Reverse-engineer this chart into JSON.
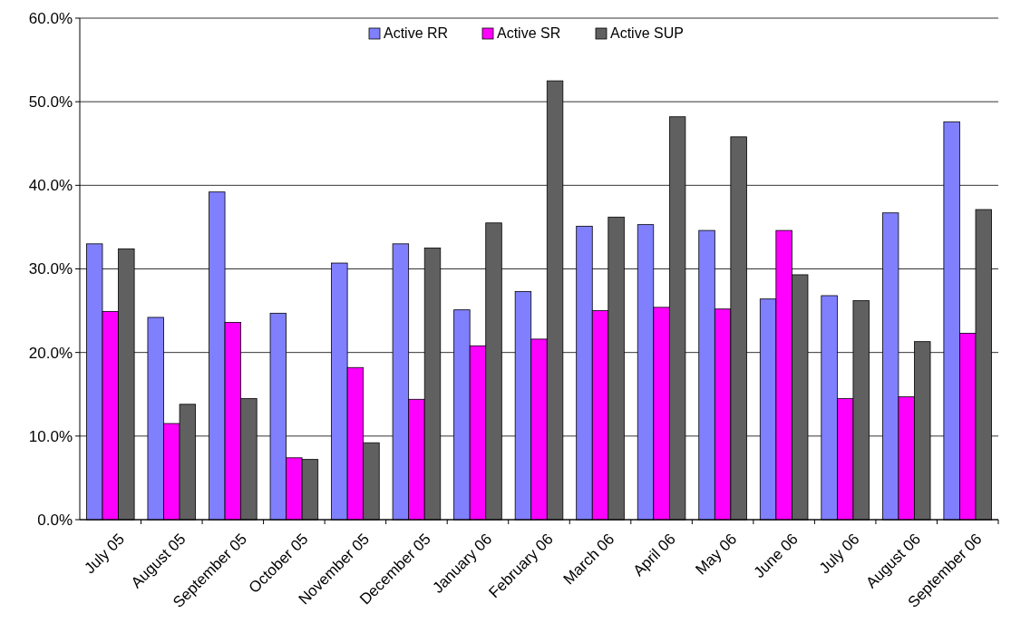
{
  "chart_data": {
    "type": "bar",
    "categories": [
      "July 05",
      "August 05",
      "September 05",
      "October 05",
      "November 05",
      "December 05",
      "January 06",
      "February 06",
      "March 06",
      "April 06",
      "May 06",
      "June 06",
      "July 06",
      "August 06",
      "September 06"
    ],
    "series": [
      {
        "name": "Active RR",
        "color": "#8080ff",
        "values": [
          33.0,
          24.2,
          39.2,
          24.7,
          30.7,
          33.0,
          25.1,
          27.3,
          35.1,
          35.3,
          34.6,
          26.4,
          26.8,
          36.7,
          47.6
        ]
      },
      {
        "name": "Active SR",
        "color": "#ff00ff",
        "values": [
          24.9,
          11.5,
          23.6,
          7.4,
          18.2,
          14.4,
          20.8,
          21.6,
          25.0,
          25.4,
          25.2,
          34.6,
          14.5,
          14.7,
          22.3
        ]
      },
      {
        "name": "Active SUP",
        "color": "#606060",
        "values": [
          32.4,
          13.8,
          14.5,
          7.2,
          9.2,
          32.5,
          35.5,
          52.5,
          36.2,
          48.2,
          45.8,
          29.3,
          26.2,
          21.3,
          37.1
        ]
      }
    ],
    "ylim": [
      0,
      60
    ],
    "yticks": [
      {
        "value": 0,
        "label": "0.0%"
      },
      {
        "value": 10,
        "label": "10.0%"
      },
      {
        "value": 20,
        "label": "20.0%"
      },
      {
        "value": 30,
        "label": "30.0%"
      },
      {
        "value": 40,
        "label": "40.0%"
      },
      {
        "value": 50,
        "label": "50.0%"
      },
      {
        "value": 60,
        "label": "60.0%"
      }
    ],
    "grid": "y",
    "legend": "top"
  }
}
